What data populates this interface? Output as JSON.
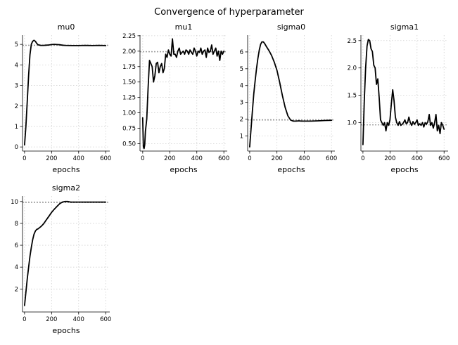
{
  "figure": {
    "title": "Convergence of hyperparameter"
  },
  "style": {
    "line_color": "#000000",
    "target_color": "#9e9e9e",
    "grid_color": "#d0d0d0",
    "grid": true
  },
  "chart_data": [
    {
      "type": "line",
      "title": "mu0",
      "xlabel": "epochs",
      "ylabel": "",
      "xlim": [
        -15,
        630
      ],
      "ylim": [
        -0.2,
        5.45
      ],
      "xticks": [
        0,
        200,
        400,
        600
      ],
      "yticks": [
        0,
        1,
        2,
        3,
        4,
        5
      ],
      "target": 4.95,
      "x": [
        0,
        10,
        20,
        30,
        40,
        50,
        60,
        70,
        80,
        90,
        100,
        120,
        140,
        160,
        180,
        200,
        220,
        240,
        260,
        280,
        300,
        350,
        400,
        450,
        500,
        550,
        600
      ],
      "y": [
        0.1,
        1.0,
        2.2,
        3.5,
        4.5,
        5.0,
        5.15,
        5.2,
        5.15,
        5.05,
        4.98,
        4.95,
        4.95,
        4.96,
        4.97,
        4.99,
        5.0,
        4.99,
        4.98,
        4.96,
        4.95,
        4.94,
        4.94,
        4.95,
        4.94,
        4.95,
        4.94
      ]
    },
    {
      "type": "line",
      "title": "mu1",
      "xlabel": "epochs",
      "ylabel": "",
      "xlim": [
        -20,
        625
      ],
      "ylim": [
        0.38,
        2.26
      ],
      "xticks": [
        0,
        200,
        400,
        600
      ],
      "yticks": [
        0.5,
        0.75,
        1.0,
        1.25,
        1.5,
        1.75,
        2.0,
        2.25
      ],
      "ytick_labels": [
        "0.50",
        "0.75",
        "1.00",
        "1.25",
        "1.50",
        "1.75",
        "2.00",
        "2.25"
      ],
      "target": 1.99,
      "x": [
        0,
        5,
        10,
        15,
        20,
        30,
        40,
        50,
        60,
        70,
        80,
        90,
        100,
        110,
        120,
        130,
        140,
        150,
        160,
        170,
        180,
        190,
        200,
        210,
        220,
        230,
        240,
        250,
        260,
        270,
        280,
        290,
        300,
        310,
        320,
        330,
        340,
        350,
        360,
        370,
        380,
        390,
        400,
        410,
        420,
        430,
        440,
        450,
        460,
        470,
        480,
        490,
        500,
        510,
        520,
        530,
        540,
        550,
        560,
        570,
        580,
        590,
        600
      ],
      "y": [
        0.92,
        0.45,
        0.42,
        0.48,
        0.7,
        0.9,
        1.4,
        1.85,
        1.8,
        1.75,
        1.5,
        1.6,
        1.8,
        1.82,
        1.65,
        1.75,
        1.8,
        1.65,
        1.72,
        1.95,
        1.9,
        2.02,
        1.95,
        1.92,
        2.2,
        1.95,
        1.95,
        1.9,
        2.0,
        2.05,
        1.95,
        1.98,
        2.0,
        1.95,
        2.02,
        2.0,
        1.95,
        2.02,
        1.98,
        1.95,
        2.05,
        2.0,
        1.92,
        2.0,
        1.98,
        2.05,
        1.95,
        2.0,
        2.02,
        1.9,
        2.05,
        1.98,
        2.0,
        2.1,
        1.95,
        2.0,
        2.05,
        1.92,
        2.0,
        1.85,
        2.0,
        1.95,
        2.0
      ]
    },
    {
      "type": "line",
      "title": "sigma0",
      "xlabel": "epochs",
      "ylabel": "",
      "xlim": [
        -15,
        625
      ],
      "ylim": [
        0.1,
        7.0
      ],
      "xticks": [
        0,
        200,
        400,
        600
      ],
      "yticks": [
        1,
        2,
        3,
        4,
        5,
        6
      ],
      "target": 1.95,
      "x": [
        0,
        10,
        20,
        30,
        40,
        50,
        60,
        70,
        80,
        90,
        100,
        110,
        120,
        140,
        160,
        180,
        200,
        220,
        240,
        260,
        280,
        300,
        320,
        340,
        360,
        380,
        400,
        450,
        500,
        550,
        600
      ],
      "y": [
        0.35,
        1.4,
        2.5,
        3.5,
        4.3,
        5.0,
        5.6,
        6.1,
        6.45,
        6.6,
        6.6,
        6.5,
        6.35,
        6.1,
        5.8,
        5.4,
        4.9,
        4.2,
        3.4,
        2.7,
        2.2,
        1.95,
        1.88,
        1.88,
        1.9,
        1.88,
        1.88,
        1.88,
        1.9,
        1.92,
        1.93
      ]
    },
    {
      "type": "line",
      "title": "sigma1",
      "xlabel": "epochs",
      "ylabel": "",
      "xlim": [
        -15,
        630
      ],
      "ylim": [
        0.48,
        2.6
      ],
      "xticks": [
        0,
        200,
        400,
        600
      ],
      "yticks": [
        1.0,
        1.5,
        2.0,
        2.5
      ],
      "ytick_labels": [
        "1.0",
        "1.5",
        "2.0",
        "2.5"
      ],
      "target": 0.96,
      "x": [
        0,
        10,
        20,
        30,
        40,
        50,
        60,
        70,
        80,
        90,
        100,
        110,
        120,
        130,
        140,
        150,
        160,
        170,
        180,
        190,
        200,
        210,
        220,
        230,
        240,
        250,
        260,
        270,
        280,
        290,
        300,
        310,
        320,
        330,
        340,
        350,
        360,
        370,
        380,
        390,
        400,
        410,
        420,
        430,
        440,
        450,
        460,
        470,
        480,
        490,
        500,
        510,
        520,
        530,
        540,
        550,
        560,
        570,
        580,
        590,
        600
      ],
      "y": [
        0.6,
        1.4,
        2.0,
        2.4,
        2.52,
        2.5,
        2.35,
        2.3,
        2.05,
        2.0,
        1.7,
        1.8,
        1.45,
        1.05,
        1.0,
        0.95,
        1.0,
        0.85,
        1.0,
        0.95,
        1.05,
        1.35,
        1.6,
        1.4,
        1.1,
        1.0,
        0.95,
        1.02,
        0.95,
        0.97,
        1.0,
        1.05,
        0.98,
        1.0,
        1.1,
        1.0,
        0.95,
        1.02,
        0.97,
        1.0,
        1.05,
        0.95,
        0.98,
        0.95,
        1.0,
        0.92,
        1.0,
        0.97,
        1.02,
        1.15,
        0.95,
        1.0,
        0.9,
        1.0,
        1.15,
        0.85,
        0.95,
        0.8,
        1.0,
        0.95,
        0.88
      ]
    },
    {
      "type": "line",
      "title": "sigma2",
      "xlabel": "epochs",
      "ylabel": "",
      "xlim": [
        -15,
        630
      ],
      "ylim": [
        -0.1,
        10.5
      ],
      "xticks": [
        0,
        200,
        400,
        600
      ],
      "yticks": [
        2,
        4,
        6,
        8,
        10
      ],
      "target": 9.9,
      "x": [
        0,
        10,
        20,
        30,
        40,
        50,
        60,
        70,
        80,
        90,
        100,
        120,
        140,
        160,
        180,
        200,
        220,
        240,
        260,
        280,
        300,
        320,
        340,
        360,
        400,
        450,
        500,
        550,
        600
      ],
      "y": [
        0.5,
        1.7,
        2.9,
        4.0,
        5.0,
        5.8,
        6.5,
        7.0,
        7.3,
        7.45,
        7.5,
        7.7,
        7.95,
        8.3,
        8.65,
        9.0,
        9.3,
        9.55,
        9.8,
        9.95,
        10.0,
        10.0,
        9.95,
        9.95,
        9.95,
        9.95,
        9.95,
        9.95,
        9.95
      ]
    }
  ]
}
